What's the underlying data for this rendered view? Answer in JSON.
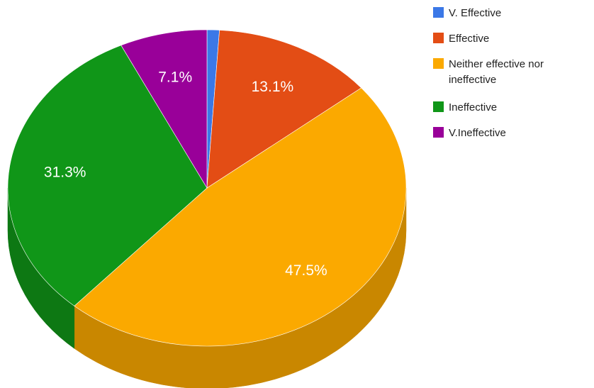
{
  "chart_data": {
    "type": "pie",
    "style": "3d",
    "title": "",
    "categories": [
      "V. Effective",
      "Effective",
      "Neither effective nor ineffective",
      "Ineffective",
      "V.Ineffective"
    ],
    "values": [
      1.0,
      13.1,
      47.5,
      31.3,
      7.1
    ],
    "value_labels": [
      "",
      "13.1%",
      "47.5%",
      "31.3%",
      "7.1%"
    ],
    "colors": [
      "#3b78e7",
      "#e34d15",
      "#fba900",
      "#109618",
      "#990099"
    ],
    "legend": {
      "position": "right",
      "entries": [
        {
          "label_lines": [
            "V. Effective"
          ]
        },
        {
          "label_lines": [
            "Effective"
          ]
        },
        {
          "label_lines": [
            "Neither effective nor",
            "ineffective"
          ]
        },
        {
          "label_lines": [
            "Ineffective"
          ]
        },
        {
          "label_lines": [
            "V.Ineffective"
          ]
        }
      ]
    }
  }
}
